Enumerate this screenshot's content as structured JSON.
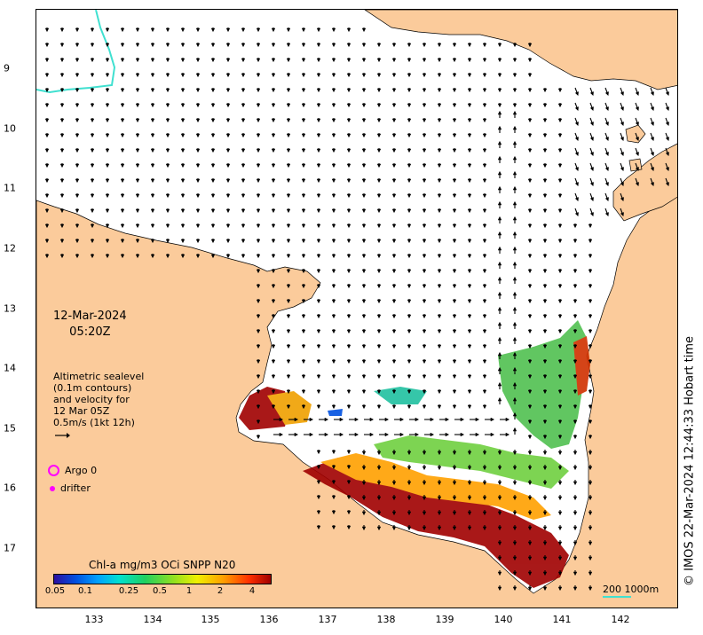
{
  "map": {
    "x_ticks": [
      "133",
      "134",
      "135",
      "136",
      "137",
      "138",
      "139",
      "140",
      "141",
      "142"
    ],
    "y_ticks": [
      "9",
      "10",
      "11",
      "12",
      "13",
      "14",
      "15",
      "16",
      "17"
    ],
    "date_line1": "12-Mar-2024",
    "date_line2": "05:20Z",
    "altimetry": {
      "line1": "Altimetric sealevel",
      "line2": "(0.1m contours)",
      "line3": "and velocity for",
      "line4": "12 Mar 05Z",
      "line5": "0.5m/s (1kt 12h)"
    },
    "legend": {
      "argo": "Argo 0",
      "drifter": "drifter"
    },
    "colorbar": {
      "title": "Chl-a mg/m3 OCi SNPP N20",
      "ticks": [
        "0.05",
        "0.1",
        "0.25",
        "0.5",
        "1",
        "2",
        "4"
      ]
    },
    "scale_label": "200  1000m",
    "credit": "© IMOS 22-Mar-2024 12:44:33 Hobart time",
    "colors": {
      "land": "#fbcb9b",
      "ocean": "#ffffff",
      "contour": "#40e0d0",
      "marker": "#ff00ff"
    }
  }
}
